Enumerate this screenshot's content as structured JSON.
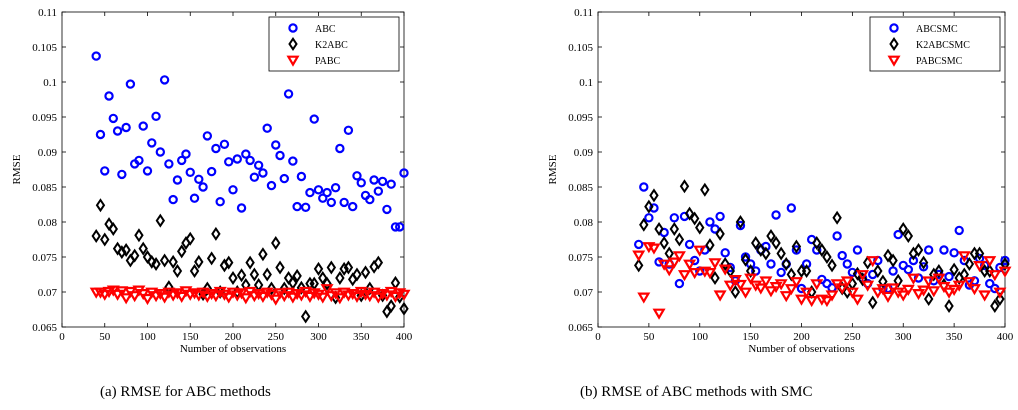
{
  "figure": {
    "caption_a": "(a)  RMSE for ABC methods",
    "caption_b": "(b)  RMSE of ABC methods with SMC"
  },
  "chart_data": [
    {
      "type": "scatter",
      "xlabel": "Number of observations",
      "ylabel": "RMSE",
      "xlim": [
        0,
        400
      ],
      "ylim": [
        0.065,
        0.11
      ],
      "xticks": [
        0,
        50,
        100,
        150,
        200,
        250,
        300,
        350,
        400
      ],
      "yticks": [
        0.065,
        0.07,
        0.075,
        0.08,
        0.085,
        0.09,
        0.095,
        0.1,
        0.105,
        0.11
      ],
      "xtick_labels": [
        "0",
        "50",
        "100",
        "150",
        "200",
        "250",
        "300",
        "350",
        "400"
      ],
      "ytick_labels": [
        "0.065",
        "0.07",
        "0.075",
        "0.08",
        "0.085",
        "0.09",
        "0.095",
        "0.1",
        "0.105",
        "0.11"
      ],
      "legend_position": "top-right",
      "grid": false,
      "x": [
        40,
        45,
        50,
        55,
        60,
        65,
        70,
        75,
        80,
        85,
        90,
        95,
        100,
        105,
        110,
        115,
        120,
        125,
        130,
        135,
        140,
        145,
        150,
        155,
        160,
        165,
        170,
        175,
        180,
        185,
        190,
        195,
        200,
        205,
        210,
        215,
        220,
        225,
        230,
        235,
        240,
        245,
        250,
        255,
        260,
        265,
        270,
        275,
        280,
        285,
        290,
        295,
        300,
        305,
        310,
        315,
        320,
        325,
        330,
        335,
        340,
        345,
        350,
        355,
        360,
        365,
        370,
        375,
        380,
        385,
        390,
        395,
        400
      ],
      "series": [
        {
          "name": "ABC",
          "marker": "circle",
          "color": "#0000ff",
          "values": [
            0.1037,
            0.0925,
            0.0873,
            0.098,
            0.0948,
            0.093,
            0.0868,
            0.0935,
            0.0997,
            0.0883,
            0.0888,
            0.0937,
            0.0873,
            0.0913,
            0.0951,
            0.09,
            0.1003,
            0.0883,
            0.0832,
            0.086,
            0.0888,
            0.0897,
            0.0871,
            0.0834,
            0.0861,
            0.085,
            0.0923,
            0.0872,
            0.0905,
            0.0829,
            0.0911,
            0.0886,
            0.0846,
            0.089,
            0.082,
            0.0897,
            0.0888,
            0.0864,
            0.0881,
            0.087,
            0.0934,
            0.0852,
            0.091,
            0.0895,
            0.0862,
            0.0983,
            0.0887,
            0.0822,
            0.0865,
            0.0821,
            0.0842,
            0.0947,
            0.0846,
            0.0834,
            0.0842,
            0.0828,
            0.0849,
            0.0905,
            0.0828,
            0.0931,
            0.0822,
            0.0866,
            0.0856,
            0.0838,
            0.0832,
            0.086,
            0.0844,
            0.0858,
            0.0818,
            0.0854,
            0.0793,
            0.0793,
            0.087
          ]
        },
        {
          "name": "K2ABC",
          "marker": "diamond",
          "color": "#000000",
          "values": [
            0.078,
            0.0824,
            0.0775,
            0.0797,
            0.079,
            0.0762,
            0.0757,
            0.076,
            0.0745,
            0.0752,
            0.0781,
            0.0762,
            0.075,
            0.0743,
            0.074,
            0.0802,
            0.0745,
            0.0707,
            0.0743,
            0.073,
            0.0758,
            0.077,
            0.0776,
            0.073,
            0.0743,
            0.0697,
            0.0705,
            0.0748,
            0.0783,
            0.07,
            0.0738,
            0.0742,
            0.072,
            0.07,
            0.0724,
            0.071,
            0.0742,
            0.0725,
            0.071,
            0.0754,
            0.0725,
            0.0705,
            0.077,
            0.0735,
            0.0705,
            0.072,
            0.0713,
            0.0723,
            0.0706,
            0.0665,
            0.0712,
            0.0712,
            0.0733,
            0.072,
            0.0712,
            0.0735,
            0.0692,
            0.072,
            0.0733,
            0.0735,
            0.0718,
            0.0725,
            0.0695,
            0.0728,
            0.0705,
            0.0736,
            0.0742,
            0.0695,
            0.0672,
            0.068,
            0.0713,
            0.0693,
            0.0676
          ]
        },
        {
          "name": "PABC",
          "marker": "triangle-down",
          "color": "#ff0000",
          "values": [
            0.07,
            0.07,
            0.0697,
            0.0701,
            0.0703,
            0.0697,
            0.0702,
            0.0692,
            0.0701,
            0.0695,
            0.0703,
            0.0698,
            0.0691,
            0.07,
            0.0695,
            0.0698,
            0.0693,
            0.07,
            0.0696,
            0.0699,
            0.0694,
            0.0702,
            0.0697,
            0.0699,
            0.0696,
            0.07,
            0.0694,
            0.0698,
            0.0695,
            0.0701,
            0.0697,
            0.0693,
            0.07,
            0.0696,
            0.0699,
            0.0692,
            0.0701,
            0.0695,
            0.0698,
            0.0694,
            0.07,
            0.0697,
            0.069,
            0.0699,
            0.0695,
            0.07,
            0.0693,
            0.0698,
            0.0696,
            0.0701,
            0.0694,
            0.0699,
            0.0697,
            0.0693,
            0.0705,
            0.0695,
            0.0699,
            0.0692,
            0.07,
            0.0696,
            0.0698,
            0.0694,
            0.0701,
            0.0697,
            0.0695,
            0.07,
            0.0693,
            0.0698,
            0.0696,
            0.0701,
            0.0694,
            0.0699,
            0.0697
          ]
        }
      ]
    },
    {
      "type": "scatter",
      "xlabel": "Number of observations",
      "ylabel": "RMSE",
      "xlim": [
        0,
        400
      ],
      "ylim": [
        0.065,
        0.11
      ],
      "xticks": [
        0,
        50,
        100,
        150,
        200,
        250,
        300,
        350,
        400
      ],
      "yticks": [
        0.065,
        0.07,
        0.075,
        0.08,
        0.085,
        0.09,
        0.095,
        0.1,
        0.105,
        0.11
      ],
      "xtick_labels": [
        "0",
        "50",
        "100",
        "150",
        "200",
        "250",
        "300",
        "350",
        "400"
      ],
      "ytick_labels": [
        "0.065",
        "0.07",
        "0.075",
        "0.08",
        "0.085",
        "0.09",
        "0.095",
        "0.1",
        "0.105",
        "0.11"
      ],
      "legend_position": "top-right",
      "grid": false,
      "x": [
        40,
        45,
        50,
        55,
        60,
        65,
        70,
        75,
        80,
        85,
        90,
        95,
        100,
        105,
        110,
        115,
        120,
        125,
        130,
        135,
        140,
        145,
        150,
        155,
        160,
        165,
        170,
        175,
        180,
        185,
        190,
        195,
        200,
        205,
        210,
        215,
        220,
        225,
        230,
        235,
        240,
        245,
        250,
        255,
        260,
        265,
        270,
        275,
        280,
        285,
        290,
        295,
        300,
        305,
        310,
        315,
        320,
        325,
        330,
        335,
        340,
        345,
        350,
        355,
        360,
        365,
        370,
        375,
        380,
        385,
        390,
        395,
        400
      ],
      "series": [
        {
          "name": "ABCSMC",
          "marker": "circle",
          "color": "#0000ff",
          "values": [
            0.0768,
            0.085,
            0.0806,
            0.082,
            0.0743,
            0.0785,
            0.074,
            0.0806,
            0.0712,
            0.0808,
            0.0768,
            0.0745,
            0.073,
            0.076,
            0.08,
            0.079,
            0.0808,
            0.0756,
            0.0735,
            0.0716,
            0.0795,
            0.075,
            0.074,
            0.073,
            0.076,
            0.0765,
            0.074,
            0.081,
            0.0728,
            0.074,
            0.082,
            0.076,
            0.0705,
            0.074,
            0.0775,
            0.076,
            0.0718,
            0.0712,
            0.0706,
            0.078,
            0.0752,
            0.074,
            0.0728,
            0.076,
            0.072,
            0.0712,
            0.0725,
            0.0745,
            0.0705,
            0.0705,
            0.073,
            0.0782,
            0.0738,
            0.0732,
            0.0745,
            0.072,
            0.0736,
            0.076,
            0.0716,
            0.0725,
            0.076,
            0.0722,
            0.0756,
            0.0788,
            0.0745,
            0.071,
            0.0716,
            0.0748,
            0.0738,
            0.0712,
            0.0705,
            0.0735,
            0.0745
          ]
        },
        {
          "name": "K2ABCSMC",
          "marker": "diamond",
          "color": "#000000",
          "values": [
            0.0738,
            0.0796,
            0.0822,
            0.0838,
            0.079,
            0.077,
            0.0755,
            0.079,
            0.0775,
            0.0851,
            0.0812,
            0.0805,
            0.0792,
            0.0846,
            0.0767,
            0.072,
            0.0783,
            0.074,
            0.073,
            0.07,
            0.08,
            0.0746,
            0.073,
            0.077,
            0.076,
            0.0755,
            0.078,
            0.077,
            0.0755,
            0.074,
            0.0725,
            0.0765,
            0.073,
            0.073,
            0.07,
            0.077,
            0.076,
            0.075,
            0.0738,
            0.0806,
            0.0705,
            0.07,
            0.0712,
            0.0726,
            0.0718,
            0.0742,
            0.0685,
            0.073,
            0.0715,
            0.0752,
            0.0745,
            0.0716,
            0.079,
            0.078,
            0.0755,
            0.076,
            0.0742,
            0.069,
            0.0725,
            0.073,
            0.071,
            0.068,
            0.0732,
            0.072,
            0.0725,
            0.074,
            0.0755,
            0.0755,
            0.073,
            0.073,
            0.068,
            0.069,
            0.074
          ]
        },
        {
          "name": "PABCSMC",
          "marker": "triangle-down",
          "color": "#ff0000",
          "values": [
            0.0753,
            0.0693,
            0.0765,
            0.0763,
            0.067,
            0.074,
            0.0732,
            0.0743,
            0.0752,
            0.0725,
            0.074,
            0.0728,
            0.076,
            0.073,
            0.0728,
            0.0742,
            0.0696,
            0.0733,
            0.071,
            0.0718,
            0.0711,
            0.07,
            0.072,
            0.071,
            0.0706,
            0.0716,
            0.0702,
            0.0708,
            0.0712,
            0.0695,
            0.0705,
            0.0715,
            0.069,
            0.07,
            0.0688,
            0.0712,
            0.069,
            0.0688,
            0.0696,
            0.0712,
            0.0706,
            0.0716,
            0.07,
            0.069,
            0.0725,
            0.071,
            0.0745,
            0.07,
            0.0705,
            0.0694,
            0.0706,
            0.07,
            0.0696,
            0.0704,
            0.072,
            0.0698,
            0.0703,
            0.0716,
            0.0702,
            0.072,
            0.0708,
            0.07,
            0.0704,
            0.071,
            0.0752,
            0.0715,
            0.0705,
            0.0738,
            0.0696,
            0.0745,
            0.0725,
            0.07,
            0.073
          ]
        }
      ]
    }
  ]
}
